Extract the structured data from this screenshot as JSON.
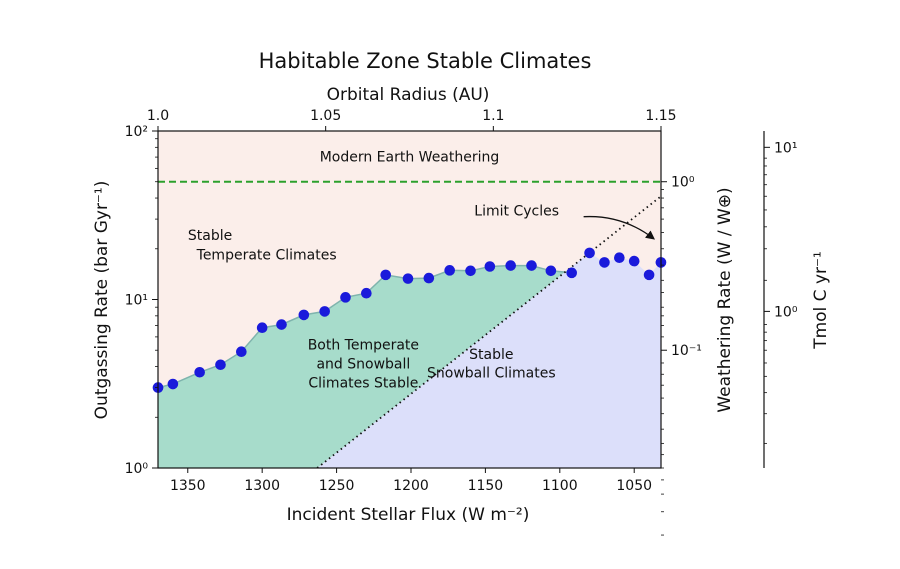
{
  "chart_data": {
    "type": "scatter",
    "title": "Habitable Zone Stable Climates",
    "xlabel": "Incident Stellar Flux (W m⁻²)",
    "x_reversed": true,
    "xlim": [
      1370,
      1032
    ],
    "xticks": [
      1350,
      1300,
      1250,
      1200,
      1150,
      1100,
      1050
    ],
    "ylabel": "Outgassing Rate (bar Gyr⁻¹)",
    "yscale": "log",
    "ylim": [
      1,
      100
    ],
    "yticks": [
      {
        "v": 1,
        "label": "10⁰"
      },
      {
        "v": 10,
        "label": "10¹"
      },
      {
        "v": 100,
        "label": "10²"
      }
    ],
    "top_xlabel": "Orbital Radius (AU)",
    "top_xticks": [
      {
        "v": 1.0,
        "label": "1.0"
      },
      {
        "v": 1.05,
        "label": "1.05"
      },
      {
        "v": 1.1,
        "label": "1.1"
      },
      {
        "v": 1.15,
        "label": "1.15"
      }
    ],
    "right_ylabel": "Weathering Rate (W / W⊕)",
    "right_yticks": [
      {
        "label": "10⁰",
        "at_outgassing": 50
      },
      {
        "label": "10⁻¹",
        "at_outgassing": 5
      }
    ],
    "far_right_ylabel": "Tmol C yr⁻¹",
    "far_right_yticks": [
      {
        "label": "10¹",
        "at_outgassing": 80
      },
      {
        "label": "10⁰",
        "at_outgassing": 8.5
      }
    ],
    "reference_line": {
      "label": "Modern Earth Weathering",
      "y": 50,
      "color": "#2ca02c"
    },
    "snowball_boundary": [
      [
        1263,
        1
      ],
      [
        1032,
        41
      ]
    ],
    "boundary_points": {
      "x": [
        1370,
        1360,
        1342,
        1328,
        1314,
        1300,
        1287,
        1272,
        1258,
        1244,
        1230,
        1217,
        1202,
        1188,
        1174,
        1160,
        1147,
        1133,
        1119,
        1106,
        1092,
        1080,
        1070,
        1060,
        1050,
        1040,
        1032
      ],
      "y": [
        3.0,
        3.15,
        3.7,
        4.1,
        4.9,
        6.8,
        7.1,
        8.1,
        8.5,
        10.3,
        10.9,
        14.0,
        13.3,
        13.4,
        14.9,
        14.8,
        15.7,
        15.9,
        15.9,
        14.8,
        14.4,
        18.9,
        16.6,
        17.7,
        16.9,
        14.0,
        16.6
      ]
    },
    "limit_cycle_from": 1092,
    "colors": {
      "temperate": "#fbeeea",
      "both": "#a7dccb",
      "snowball": "#dcdffa",
      "points": "#1a1adb",
      "boundary": "#7fb4ad"
    },
    "annotations": [
      {
        "text": "Modern Earth Weathering",
        "x": 1201,
        "y": 66
      },
      {
        "text": "Stable",
        "x": 1335,
        "y": 22.5
      },
      {
        "text": "Temperate Climates",
        "x": 1297,
        "y": 17.3
      },
      {
        "text": "Both Temperate",
        "x": 1232,
        "y": 5.05
      },
      {
        "text": "and Snowball",
        "x": 1232,
        "y": 3.9
      },
      {
        "text": "Climates Stable",
        "x": 1232,
        "y": 3.0
      },
      {
        "text": "Stable",
        "x": 1146,
        "y": 4.45
      },
      {
        "text": "Snowball Climates",
        "x": 1146,
        "y": 3.45
      },
      {
        "text": "Limit Cycles",
        "x": 1129,
        "y": 31.6
      }
    ],
    "limit_cycle_arrow": {
      "from": [
        1084,
        31
      ],
      "to": [
        1037,
        23
      ]
    }
  }
}
